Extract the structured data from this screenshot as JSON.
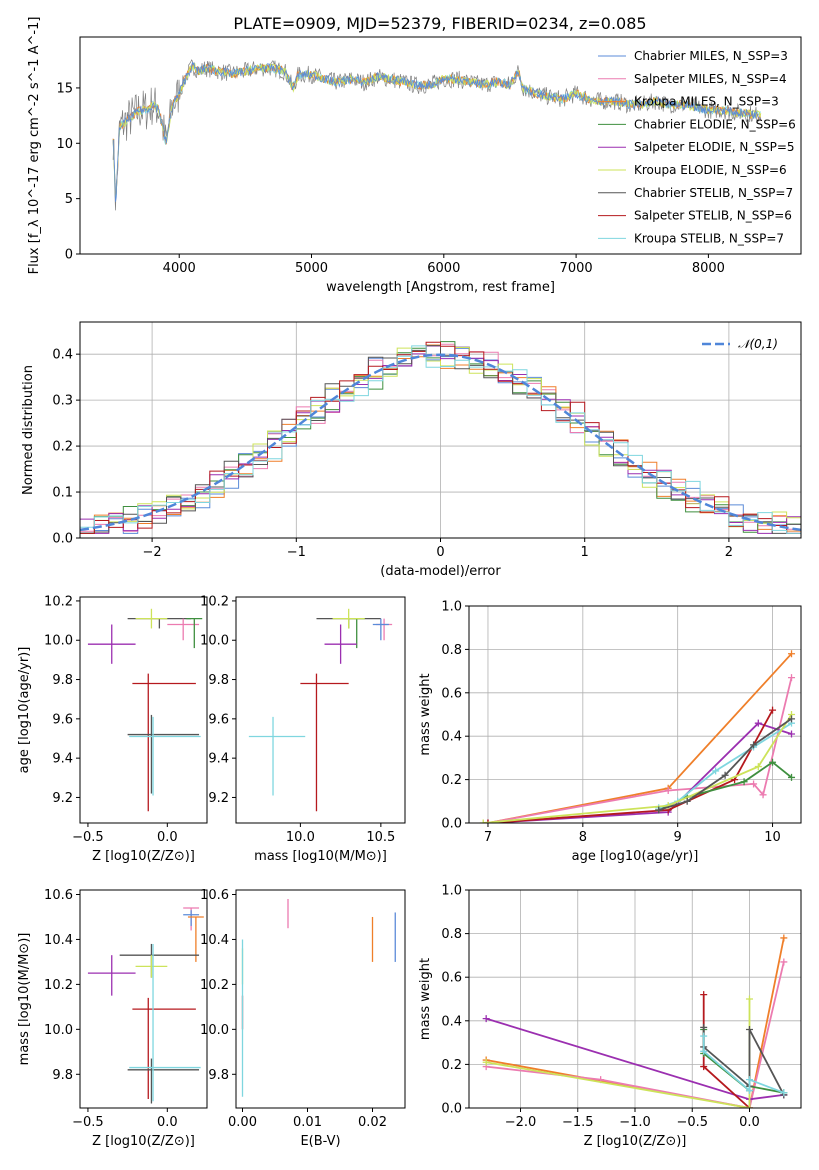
{
  "figure": {
    "title": "PLATE=0909, MJD=52379, FIBERID=0234, z=0.085"
  },
  "legend_entries": [
    {
      "label": "Chabrier MILES, N_SSP=3",
      "color": "#5b8bd8"
    },
    {
      "label": "Salpeter MILES, N_SSP=4",
      "color": "#ec7bb0"
    },
    {
      "label": "Kroupa MILES, N_SSP=3",
      "color": "#ef7f2a"
    },
    {
      "label": "Chabrier ELODIE, N_SSP=6",
      "color": "#3f8f3f"
    },
    {
      "label": "Salpeter ELODIE, N_SSP=5",
      "color": "#9b2fb0"
    },
    {
      "label": "Kroupa ELODIE, N_SSP=6",
      "color": "#cde35a"
    },
    {
      "label": "Chabrier STELIB, N_SSP=7",
      "color": "#555555"
    },
    {
      "label": "Salpeter STELIB, N_SSP=6",
      "color": "#b5191e"
    },
    {
      "label": "Kroupa STELIB, N_SSP=7",
      "color": "#7fd6df"
    }
  ],
  "chart_data": [
    {
      "id": "spectrum",
      "type": "line",
      "title": "PLATE=0909, MJD=52379, FIBERID=0234, z=0.085",
      "xlabel": "wavelength [Angstrom, rest frame]",
      "ylabel": "Flux [f_λ 10^-17 erg cm^-2 s^-1 A^-1]",
      "xlim": [
        3250,
        8700
      ],
      "ylim": [
        0,
        19.6
      ],
      "xticks": [
        4000,
        5000,
        6000,
        7000,
        8000
      ],
      "yticks": [
        0,
        5,
        10,
        15
      ],
      "x": [
        3500,
        3520,
        3550,
        3600,
        3650,
        3700,
        3750,
        3800,
        3850,
        3900,
        3950,
        4000,
        4050,
        4100,
        4150,
        4200,
        4300,
        4400,
        4500,
        4600,
        4700,
        4800,
        4860,
        4900,
        5000,
        5100,
        5200,
        5300,
        5400,
        5500,
        5600,
        5700,
        5800,
        5900,
        6000,
        6100,
        6200,
        6300,
        6400,
        6500,
        6563,
        6600,
        6700,
        6800,
        6900,
        7000,
        7100,
        7200,
        7300,
        7400,
        7500,
        7600,
        7700,
        7800,
        7900,
        8000,
        8100,
        8200,
        8300,
        8400
      ],
      "y": [
        10.5,
        4.5,
        11.5,
        12,
        12.5,
        13,
        13,
        13.5,
        13,
        10,
        13.5,
        14.5,
        16,
        17,
        16.5,
        16.8,
        16.5,
        16.3,
        16.5,
        16.8,
        16.8,
        16.5,
        15,
        16.2,
        16.2,
        15.8,
        15.5,
        15.8,
        15.5,
        16,
        15.8,
        15.5,
        15.2,
        15.3,
        15.8,
        15.8,
        15.5,
        15.3,
        15.5,
        15.3,
        16.5,
        15,
        14.5,
        14.2,
        14,
        14.5,
        14,
        13.8,
        13.8,
        13.5,
        13.5,
        13.8,
        13.5,
        13.5,
        13.3,
        13,
        13,
        12.8,
        12.7,
        12.5
      ],
      "grid": false,
      "legend_placement": "top-right"
    },
    {
      "id": "residuals",
      "type": "step-histogram",
      "xlabel": "(data-model)/error",
      "ylabel": "Normed distribution",
      "xlim": [
        -2.5,
        2.5
      ],
      "ylim": [
        0,
        0.47
      ],
      "xticks": [
        -2,
        -1,
        0,
        1,
        2
      ],
      "yticks": [
        0.0,
        0.1,
        0.2,
        0.3,
        0.4
      ],
      "bin_width": 0.1,
      "reference": {
        "label": "𝒩(0,1)",
        "mu": 0,
        "sigma": 1
      },
      "grid": true,
      "legend_placement": "top-right"
    },
    {
      "id": "z_age",
      "type": "errorbar",
      "xlabel": "Z [log10(Z/Z⊙)]",
      "ylabel": "age  [log10(age/yr)]",
      "xlim": [
        -0.55,
        0.25
      ],
      "ylim": [
        9.07,
        10.22
      ],
      "xticks": [
        -0.5,
        0.0
      ],
      "yticks": [
        9.2,
        9.4,
        9.6,
        9.8,
        10.0,
        10.2
      ],
      "points": [
        {
          "series": 6,
          "x": -0.05,
          "y": 10.11,
          "xerr": [
            0.2,
            0.2
          ],
          "yerr": [
            0.05,
            0
          ]
        },
        {
          "series": 1,
          "x": 0.1,
          "y": 10.08,
          "xerr": [
            0.1,
            0.1
          ],
          "yerr": [
            0.08,
            0.03
          ]
        },
        {
          "series": 3,
          "x": 0.17,
          "y": 10.11,
          "xerr": [
            0.05,
            0.05
          ],
          "yerr": [
            0.15,
            0
          ]
        },
        {
          "series": 4,
          "x": -0.35,
          "y": 9.98,
          "xerr": [
            0.15,
            0.15
          ],
          "yerr": [
            0.1,
            0.1
          ]
        },
        {
          "series": 5,
          "x": -0.1,
          "y": 10.11,
          "xerr": [
            0.1,
            0.1
          ],
          "yerr": [
            0.05,
            0.05
          ]
        },
        {
          "series": 7,
          "x": -0.12,
          "y": 9.78,
          "xerr": [
            0.1,
            0.3
          ],
          "yerr": [
            0.65,
            0.05
          ]
        },
        {
          "series": 6,
          "x": -0.1,
          "y": 9.52,
          "xerr": [
            0.15,
            0.3
          ],
          "yerr": [
            0.3,
            0.1
          ]
        },
        {
          "series": 8,
          "x": -0.09,
          "y": 9.51,
          "xerr": [
            0.15,
            0.3
          ],
          "yerr": [
            0.3,
            0.1
          ]
        }
      ]
    },
    {
      "id": "mass_age",
      "type": "errorbar",
      "xlabel": "mass [log10(M/M⊙)]",
      "ylabel": "",
      "xlim": [
        9.6,
        10.65
      ],
      "ylim": [
        9.07,
        10.22
      ],
      "xticks": [
        10.0,
        10.5
      ],
      "yticks": [
        9.2,
        9.4,
        9.6,
        9.8,
        10.0,
        10.2
      ],
      "points": [
        {
          "series": 6,
          "x": 10.3,
          "y": 10.11,
          "xerr": [
            0.2,
            0.2
          ],
          "yerr": [
            0.05,
            0
          ]
        },
        {
          "series": 1,
          "x": 10.52,
          "y": 10.08,
          "xerr": [
            0.05,
            0.05
          ],
          "yerr": [
            0.08,
            0.03
          ]
        },
        {
          "series": 0,
          "x": 10.5,
          "y": 10.08,
          "xerr": [
            0.05,
            0.05
          ],
          "yerr": [
            0.08,
            0.03
          ]
        },
        {
          "series": 3,
          "x": 10.35,
          "y": 10.11,
          "xerr": [
            0.05,
            0.05
          ],
          "yerr": [
            0.15,
            0
          ]
        },
        {
          "series": 4,
          "x": 10.25,
          "y": 9.98,
          "xerr": [
            0.1,
            0.1
          ],
          "yerr": [
            0.1,
            0.1
          ]
        },
        {
          "series": 5,
          "x": 10.3,
          "y": 10.11,
          "xerr": [
            0.1,
            0.1
          ],
          "yerr": [
            0.05,
            0.05
          ]
        },
        {
          "series": 7,
          "x": 10.1,
          "y": 9.78,
          "xerr": [
            0.1,
            0.2
          ],
          "yerr": [
            0.65,
            0.05
          ]
        },
        {
          "series": 8,
          "x": 9.83,
          "y": 9.51,
          "xerr": [
            0.15,
            0.2
          ],
          "yerr": [
            0.3,
            0.1
          ]
        }
      ]
    },
    {
      "id": "age_weight",
      "type": "line",
      "xlabel": "age  [log10(age/yr)]",
      "ylabel": "mass weight",
      "xlim": [
        6.8,
        10.3
      ],
      "ylim": [
        0,
        1
      ],
      "xticks": [
        7,
        8,
        9,
        10
      ],
      "yticks": [
        0.0,
        0.2,
        0.4,
        0.6,
        0.8,
        1.0
      ],
      "grid": true,
      "series": [
        {
          "series": 2,
          "x": [
            7.0,
            8.9,
            10.2
          ],
          "y": [
            0.0,
            0.16,
            0.78
          ]
        },
        {
          "series": 1,
          "x": [
            7.0,
            8.9,
            9.8,
            9.9,
            10.2
          ],
          "y": [
            0.0,
            0.15,
            0.18,
            0.13,
            0.67
          ]
        },
        {
          "series": 4,
          "x": [
            7.0,
            8.9,
            9.85,
            10.2
          ],
          "y": [
            0.0,
            0.05,
            0.46,
            0.41
          ]
        },
        {
          "series": 7,
          "x": [
            7.0,
            8.9,
            9.6,
            10.0
          ],
          "y": [
            0.0,
            0.06,
            0.2,
            0.52
          ]
        },
        {
          "series": 3,
          "x": [
            8.8,
            9.1,
            9.7,
            10.0,
            10.2
          ],
          "y": [
            0.06,
            0.12,
            0.19,
            0.28,
            0.21
          ]
        },
        {
          "series": 8,
          "x": [
            8.8,
            9.0,
            9.4,
            9.8,
            10.2
          ],
          "y": [
            0.07,
            0.1,
            0.24,
            0.35,
            0.46
          ]
        },
        {
          "series": 5,
          "x": [
            6.95,
            8.9,
            9.85,
            10.2
          ],
          "y": [
            0.0,
            0.08,
            0.26,
            0.5
          ]
        },
        {
          "series": 6,
          "x": [
            8.8,
            9.1,
            9.5,
            9.8,
            10.2
          ],
          "y": [
            0.06,
            0.1,
            0.22,
            0.36,
            0.48
          ]
        }
      ]
    },
    {
      "id": "z_mass",
      "type": "errorbar",
      "xlabel": "Z [log10(Z/Z⊙)]",
      "ylabel": "mass [log10(M/M⊙)]",
      "xlim": [
        -0.55,
        0.25
      ],
      "ylim": [
        9.65,
        10.62
      ],
      "xticks": [
        -0.5,
        0.0
      ],
      "yticks": [
        9.8,
        10.0,
        10.2,
        10.4,
        10.6
      ],
      "points": [
        {
          "series": 1,
          "x": 0.15,
          "y": 10.54,
          "xerr": [
            0.05,
            0.05
          ],
          "yerr": [
            0.1,
            0
          ]
        },
        {
          "series": 0,
          "x": 0.15,
          "y": 10.51,
          "xerr": [
            0.05,
            0.05
          ],
          "yerr": [
            0.05,
            0.02
          ]
        },
        {
          "series": 2,
          "x": 0.18,
          "y": 10.5,
          "xerr": [
            0.05,
            0.05
          ],
          "yerr": [
            0.2,
            0
          ]
        },
        {
          "series": 6,
          "x": -0.1,
          "y": 10.33,
          "xerr": [
            0.2,
            0.3
          ],
          "yerr": [
            0.1,
            0.05
          ]
        },
        {
          "series": 4,
          "x": -0.35,
          "y": 10.25,
          "xerr": [
            0.15,
            0.15
          ],
          "yerr": [
            0.1,
            0.08
          ]
        },
        {
          "series": 5,
          "x": -0.1,
          "y": 10.28,
          "xerr": [
            0.1,
            0.1
          ],
          "yerr": [
            0.05,
            0.05
          ]
        },
        {
          "series": 7,
          "x": -0.12,
          "y": 10.09,
          "xerr": [
            0.1,
            0.3
          ],
          "yerr": [
            0.4,
            0.05
          ]
        },
        {
          "series": 6,
          "x": -0.1,
          "y": 9.82,
          "xerr": [
            0.15,
            0.3
          ],
          "yerr": [
            0.15,
            0.05
          ]
        },
        {
          "series": 8,
          "x": -0.09,
          "y": 9.83,
          "xerr": [
            0.15,
            0.3
          ],
          "yerr": [
            0.15,
            0.55
          ]
        }
      ]
    },
    {
      "id": "ebv_mass",
      "type": "errorbar",
      "xlabel": "E(B-V)",
      "ylabel": "",
      "xlim": [
        -0.001,
        0.025
      ],
      "ylim": [
        9.65,
        10.62
      ],
      "xticks": [
        0.0,
        0.01,
        0.02
      ],
      "yticks": [
        9.8,
        10.0,
        10.2,
        10.4,
        10.6
      ],
      "points": [
        {
          "series": 1,
          "x": 0.007,
          "y": 10.5,
          "xerr": [
            0,
            0
          ],
          "yerr": [
            0.05,
            0.08
          ]
        },
        {
          "series": 2,
          "x": 0.02,
          "y": 10.4,
          "xerr": [
            0,
            0
          ],
          "yerr": [
            0.1,
            0.1
          ]
        },
        {
          "series": 0,
          "x": 0.0235,
          "y": 10.4,
          "xerr": [
            0,
            0
          ],
          "yerr": [
            0.1,
            0.12
          ]
        },
        {
          "series": 5,
          "x": 0.0,
          "y": 10.28,
          "xerr": [
            0,
            0
          ],
          "yerr": [
            0.08,
            0.08
          ]
        },
        {
          "series": 7,
          "x": 0.0,
          "y": 10.05,
          "xerr": [
            0,
            0
          ],
          "yerr": [
            0.05,
            0.1
          ]
        },
        {
          "series": 8,
          "x": 0.0,
          "y": 9.9,
          "xerr": [
            0,
            0
          ],
          "yerr": [
            0.2,
            0.5
          ]
        }
      ]
    },
    {
      "id": "z_weight",
      "type": "line",
      "xlabel": "Z [log10(Z/Z⊙)]",
      "ylabel": "mass weight",
      "xlim": [
        -2.45,
        0.45
      ],
      "ylim": [
        0,
        1
      ],
      "xticks": [
        -2.0,
        -1.5,
        -1.0,
        -0.5,
        0.0
      ],
      "yticks": [
        0.0,
        0.2,
        0.4,
        0.6,
        0.8,
        1.0
      ],
      "grid": true,
      "series": [
        {
          "series": 2,
          "x": [
            -2.3,
            0.0,
            0.3
          ],
          "y": [
            0.22,
            0.0,
            0.78
          ]
        },
        {
          "series": 1,
          "x": [
            -2.3,
            -1.3,
            0.0,
            0.3
          ],
          "y": [
            0.19,
            0.13,
            0.0,
            0.67
          ]
        },
        {
          "series": 4,
          "x": [
            -2.3,
            0.0,
            0.3
          ],
          "y": [
            0.41,
            0.04,
            0.06
          ]
        },
        {
          "series": 7,
          "x": [
            -0.4,
            -0.4,
            0.0
          ],
          "y": [
            0.52,
            0.19,
            0.0
          ]
        },
        {
          "series": 3,
          "x": [
            -0.4,
            -0.4,
            0.0,
            0.0,
            0.3
          ],
          "y": [
            0.36,
            0.25,
            0.08,
            0.1,
            0.07
          ]
        },
        {
          "series": 5,
          "x": [
            -2.3,
            0.0,
            0.0
          ],
          "y": [
            0.21,
            0.0,
            0.5
          ]
        },
        {
          "series": 6,
          "x": [
            -0.4,
            -0.4,
            0.0,
            0.0,
            0.3
          ],
          "y": [
            0.37,
            0.28,
            0.1,
            0.36,
            0.06
          ]
        },
        {
          "series": 8,
          "x": [
            -0.4,
            -0.4,
            0.0,
            0.0,
            0.3
          ],
          "y": [
            0.33,
            0.26,
            0.08,
            0.13,
            0.07
          ]
        }
      ]
    }
  ]
}
